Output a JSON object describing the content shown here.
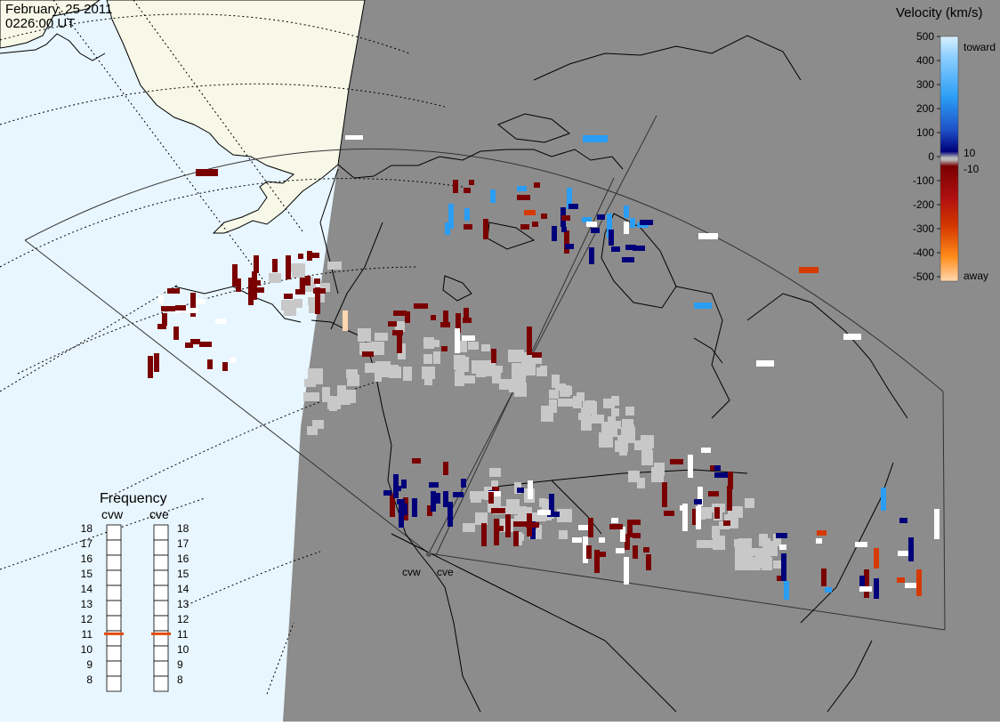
{
  "header": {
    "date": "February, 25 2011",
    "time": "0226:00 UT"
  },
  "velocity_scale": {
    "title": "Velocity (km/s)",
    "ticks": [
      "500",
      "400",
      "300",
      "200",
      "100",
      "0",
      "-100",
      "-200",
      "-300",
      "-400",
      "-500"
    ],
    "inner_ticks": [
      "10",
      "-10"
    ],
    "toward_label": "toward",
    "away_label": "away",
    "colors": {
      "toward_light": "#d8f0ff",
      "toward_mid": "#2a9df4",
      "toward_dark": "#00007a",
      "away_dark": "#7a0000",
      "away_mid": "#d63a00",
      "away_light": "#ffd7b0"
    }
  },
  "frequency": {
    "title": "Frequency",
    "radars": [
      {
        "code": "cvw",
        "marker_mhz": 10.8
      },
      {
        "code": "cve",
        "marker_mhz": 10.8
      }
    ],
    "ticks": [
      "18",
      "17",
      "16",
      "15",
      "14",
      "13",
      "12",
      "11",
      "10",
      "9",
      "8"
    ],
    "marker_color": "#e04a0f"
  },
  "map": {
    "radar_sites": [
      "cvw",
      "cve"
    ],
    "colors": {
      "ocean_day": "#e8f6ff",
      "land_day": "#f8f8e8",
      "night": "#8c8c8c",
      "ground_scatter": "#c8c8c8",
      "white_echo": "#ffffff"
    }
  }
}
